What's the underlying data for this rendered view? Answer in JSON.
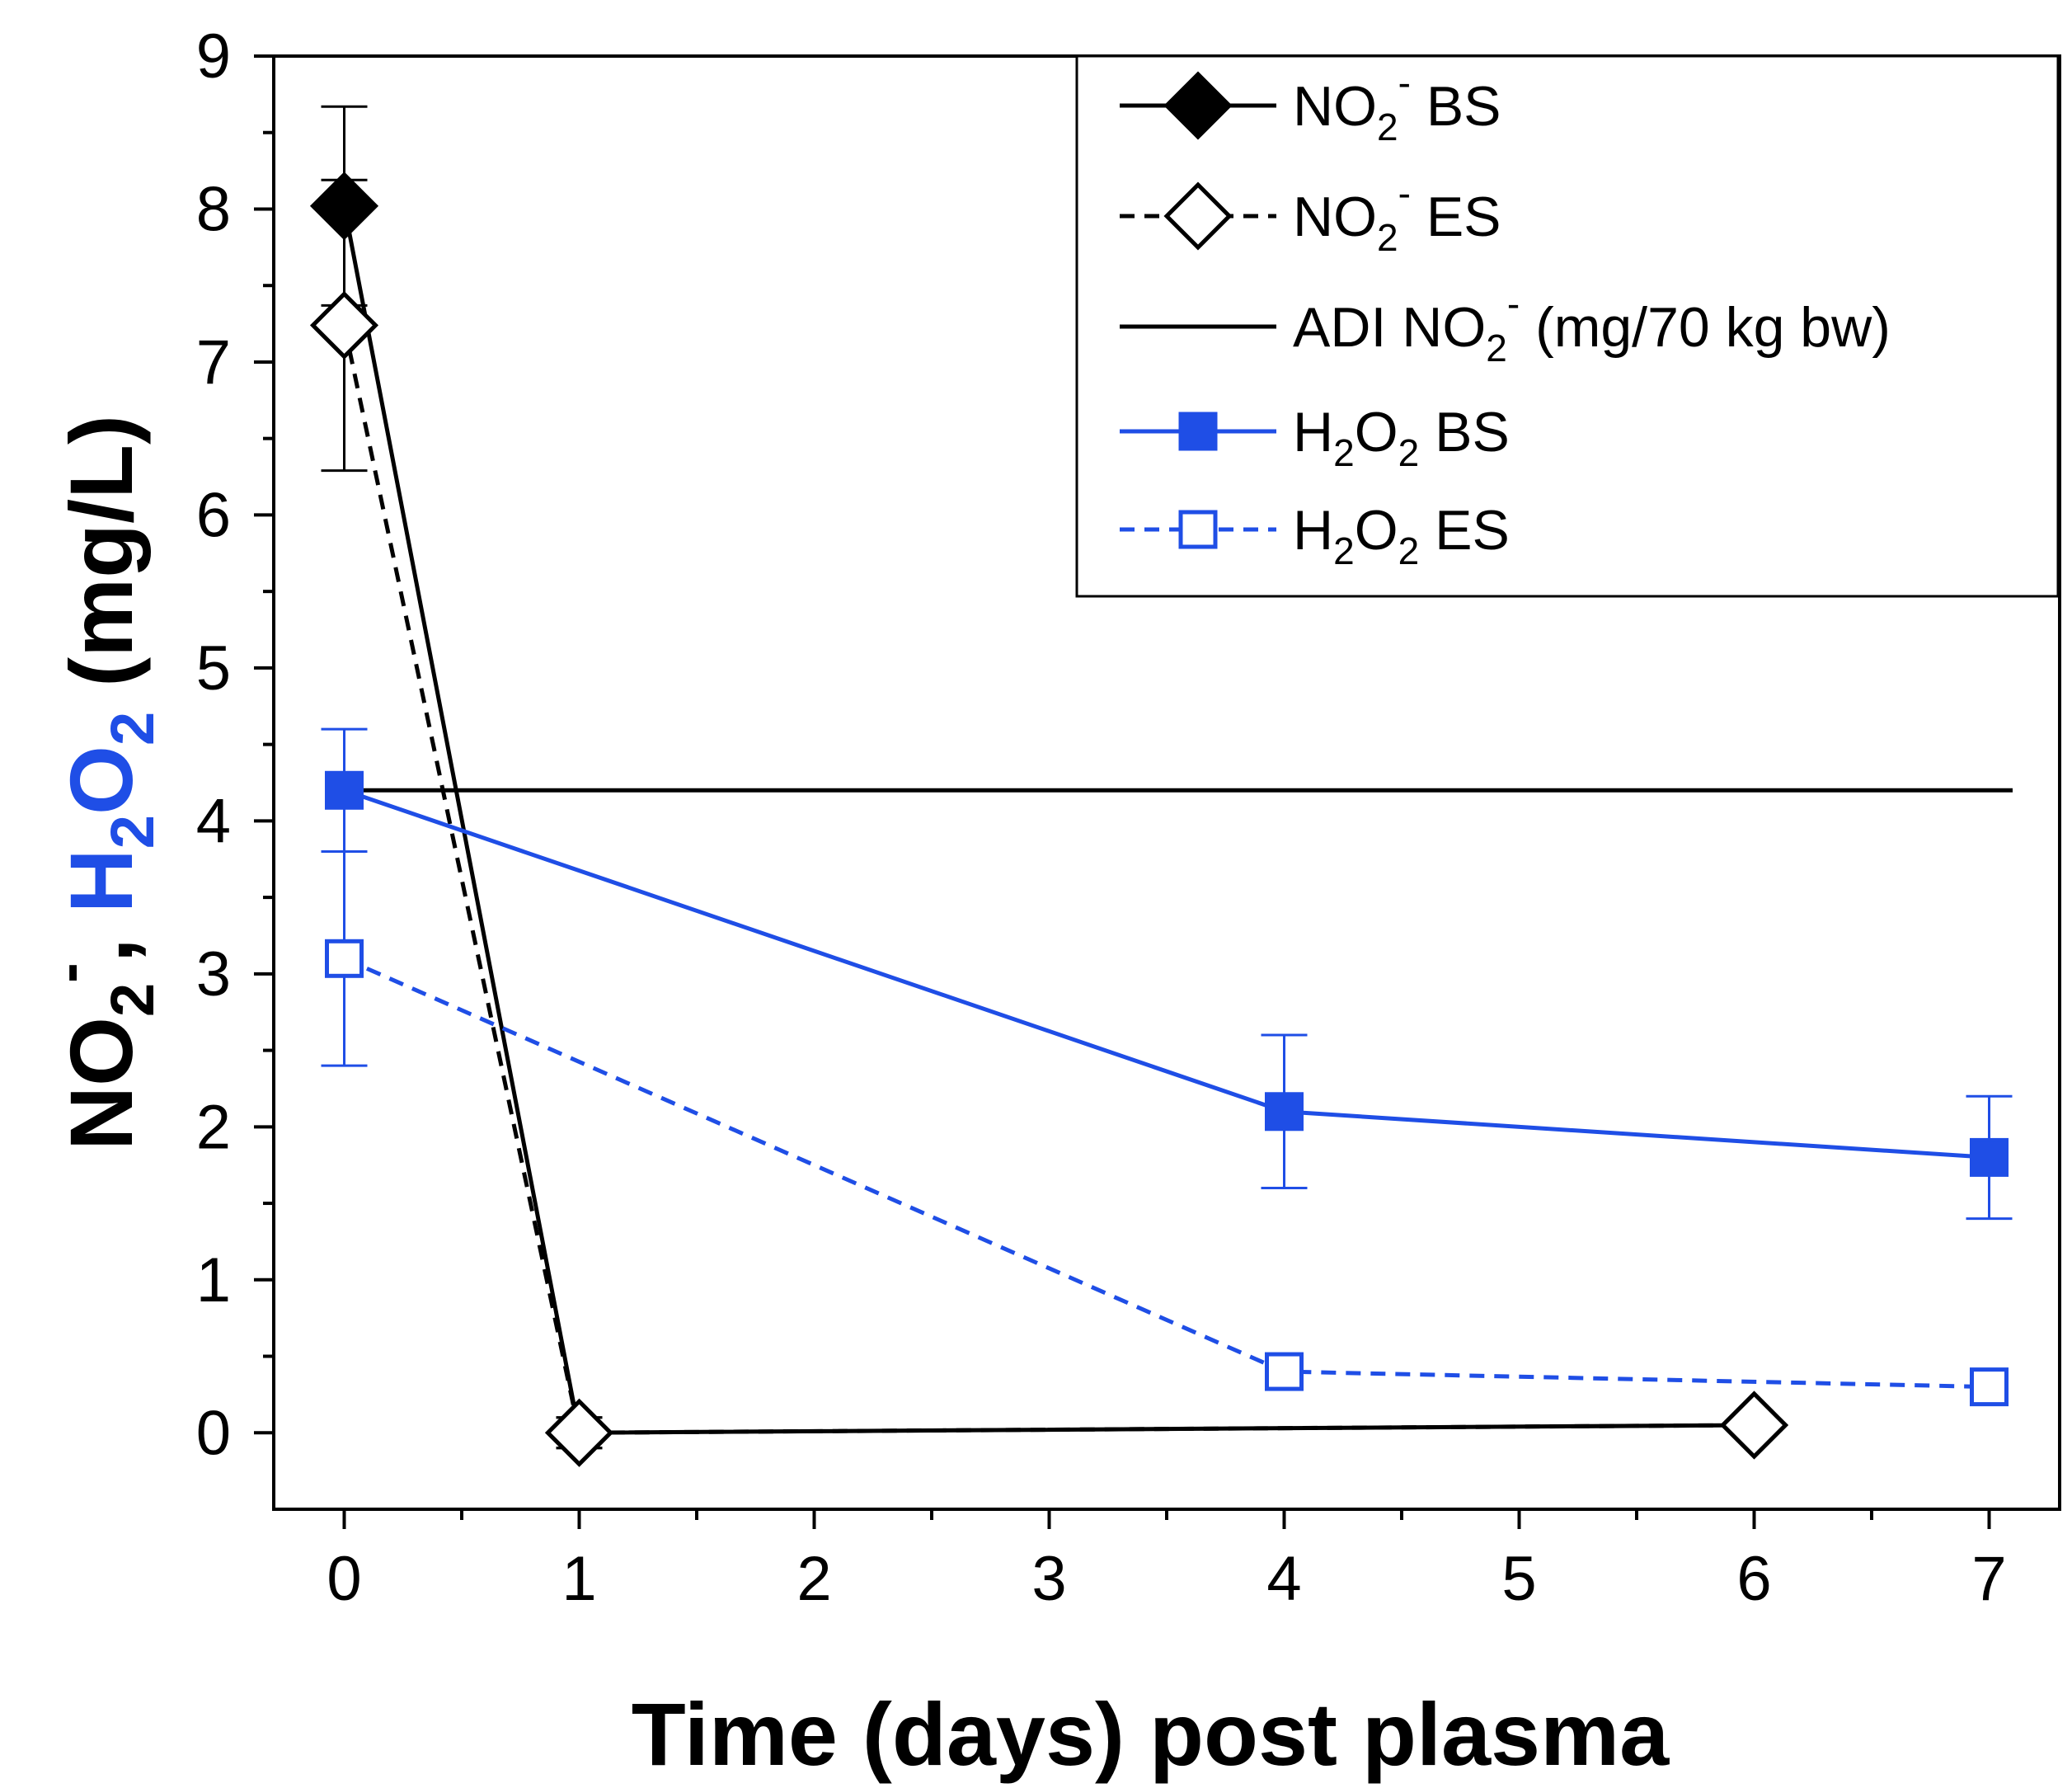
{
  "chart_data": {
    "type": "line",
    "xlabel": "Time (days) post plasma",
    "ylabel": {
      "part1": "NO",
      "part1_sub": "2",
      "part1_sup": "-",
      "separator": ", ",
      "part2": "H",
      "part2_sub": "2",
      "part2_tail": "O",
      "part2_sub2": "2",
      "unit": " (mg/L)",
      "part2_color": "#1f4ee6"
    },
    "x_ticks": [
      0,
      1,
      2,
      3,
      4,
      5,
      6,
      7
    ],
    "y_ticks": [
      0,
      1,
      2,
      3,
      4,
      5,
      6,
      7,
      8,
      9
    ],
    "xlim": [
      -0.3,
      7.3
    ],
    "ylim": [
      -0.5,
      9
    ],
    "grid": false,
    "legend_position": "top-right",
    "series": [
      {
        "name": "NO2- BS",
        "legend": {
          "base": "NO",
          "sub": "2",
          "sup": "-",
          "rest": " BS"
        },
        "color": "#000000",
        "dash": "solid",
        "marker": "diamond",
        "filled": true,
        "x": [
          0,
          1,
          6
        ],
        "y": [
          8.02,
          0.0,
          0.05
        ],
        "err": [
          0.65,
          0.1,
          0.05
        ]
      },
      {
        "name": "NO2- ES",
        "legend": {
          "base": "NO",
          "sub": "2",
          "sup": "-",
          "rest": " ES"
        },
        "color": "#000000",
        "dash": "dashed",
        "marker": "diamond",
        "filled": false,
        "x": [
          0,
          1,
          6
        ],
        "y": [
          7.24,
          0.0,
          0.05
        ],
        "err": [
          0.95,
          0.1,
          0.05
        ]
      },
      {
        "name": "ADI NO2- (mg/70 kg bw)",
        "legend": {
          "base": "ADI NO",
          "sub": "2",
          "sup": "-",
          "rest": " (mg/70 kg bw)"
        },
        "color": "#000000",
        "dash": "solid",
        "marker": "none",
        "x": [
          0,
          7.1
        ],
        "y": [
          4.2,
          4.2
        ]
      },
      {
        "name": "H2O2 BS",
        "legend": {
          "base": "H",
          "sub": "2",
          "mid": "O",
          "sub2": "2",
          "rest": " BS"
        },
        "color": "#1f4ee6",
        "dash": "solid",
        "marker": "square",
        "filled": true,
        "x": [
          0,
          4,
          7
        ],
        "y": [
          4.2,
          2.1,
          1.8
        ],
        "err": [
          0.4,
          0.5,
          0.4
        ]
      },
      {
        "name": "H2O2 ES",
        "legend": {
          "base": "H",
          "sub": "2",
          "mid": "O",
          "sub2": "2",
          "rest": " ES"
        },
        "color": "#1f4ee6",
        "dash": "dashed",
        "marker": "square",
        "filled": false,
        "x": [
          0,
          4,
          7
        ],
        "y": [
          3.1,
          0.4,
          0.3
        ],
        "err": [
          0.7,
          0.0,
          0.0
        ]
      }
    ]
  }
}
